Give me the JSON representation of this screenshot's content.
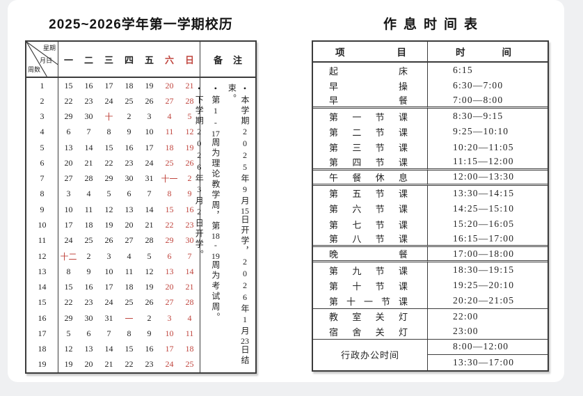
{
  "colors": {
    "red": "#c0453e",
    "ink": "#232323",
    "border": "#3b3b3b",
    "page_bg": "#eff0f2",
    "card_bg": "#ffffff"
  },
  "calendar": {
    "title": "2025~2026学年第一学期校历",
    "corner": {
      "top_right": "星期",
      "middle": "月日",
      "bottom_left": "周数"
    },
    "weekdays": [
      {
        "label": "一",
        "red": false
      },
      {
        "label": "二",
        "red": false
      },
      {
        "label": "三",
        "red": false
      },
      {
        "label": "四",
        "red": false
      },
      {
        "label": "五",
        "red": false
      },
      {
        "label": "六",
        "red": true
      },
      {
        "label": "日",
        "red": true
      }
    ],
    "remarks_header": "备注",
    "remarks": [
      "•本学期2025年9月15日开学，2026年1月23日结束。",
      "•第1-17周为理论教学周，第18-19周为考试周。",
      "•下学期2026年3月2日开学。"
    ],
    "weeks": [
      {
        "week": "1",
        "days": [
          "15",
          "16",
          "17",
          "18",
          "19",
          "20",
          "21"
        ],
        "red": [
          5,
          6
        ]
      },
      {
        "week": "2",
        "days": [
          "22",
          "23",
          "24",
          "25",
          "26",
          "27",
          "28"
        ],
        "red": [
          5,
          6
        ]
      },
      {
        "week": "3",
        "days": [
          "29",
          "30",
          "十",
          "2",
          "3",
          "4",
          "5"
        ],
        "red": [
          2,
          5,
          6
        ]
      },
      {
        "week": "4",
        "days": [
          "6",
          "7",
          "8",
          "9",
          "10",
          "11",
          "12"
        ],
        "red": [
          5,
          6
        ]
      },
      {
        "week": "5",
        "days": [
          "13",
          "14",
          "15",
          "16",
          "17",
          "18",
          "19"
        ],
        "red": [
          5,
          6
        ]
      },
      {
        "week": "6",
        "days": [
          "20",
          "21",
          "22",
          "23",
          "24",
          "25",
          "26"
        ],
        "red": [
          5,
          6
        ]
      },
      {
        "week": "7",
        "days": [
          "27",
          "28",
          "29",
          "30",
          "31",
          "十一",
          "2"
        ],
        "red": [
          5,
          6
        ]
      },
      {
        "week": "8",
        "days": [
          "3",
          "4",
          "5",
          "6",
          "7",
          "8",
          "9"
        ],
        "red": [
          5,
          6
        ]
      },
      {
        "week": "9",
        "days": [
          "10",
          "11",
          "12",
          "13",
          "14",
          "15",
          "16"
        ],
        "red": [
          5,
          6
        ]
      },
      {
        "week": "10",
        "days": [
          "17",
          "18",
          "19",
          "20",
          "21",
          "22",
          "23"
        ],
        "red": [
          5,
          6
        ]
      },
      {
        "week": "11",
        "days": [
          "24",
          "25",
          "26",
          "27",
          "28",
          "29",
          "30"
        ],
        "red": [
          5,
          6
        ]
      },
      {
        "week": "12",
        "days": [
          "十二",
          "2",
          "3",
          "4",
          "5",
          "6",
          "7"
        ],
        "red": [
          0,
          5,
          6
        ]
      },
      {
        "week": "13",
        "days": [
          "8",
          "9",
          "10",
          "11",
          "12",
          "13",
          "14"
        ],
        "red": [
          5,
          6
        ]
      },
      {
        "week": "14",
        "days": [
          "15",
          "16",
          "17",
          "18",
          "19",
          "20",
          "21"
        ],
        "red": [
          5,
          6
        ]
      },
      {
        "week": "15",
        "days": [
          "22",
          "23",
          "24",
          "25",
          "26",
          "27",
          "28"
        ],
        "red": [
          5,
          6
        ]
      },
      {
        "week": "16",
        "days": [
          "29",
          "30",
          "31",
          "一",
          "2",
          "3",
          "4"
        ],
        "red": [
          3,
          5,
          6
        ]
      },
      {
        "week": "17",
        "days": [
          "5",
          "6",
          "7",
          "8",
          "9",
          "10",
          "11"
        ],
        "red": [
          5,
          6
        ]
      },
      {
        "week": "18",
        "days": [
          "12",
          "13",
          "14",
          "15",
          "16",
          "17",
          "18"
        ],
        "red": [
          5,
          6
        ]
      },
      {
        "week": "19",
        "days": [
          "19",
          "20",
          "21",
          "22",
          "23",
          "24",
          "25"
        ],
        "red": [
          5,
          6
        ]
      }
    ]
  },
  "schedule": {
    "title": "作息时间表",
    "header": {
      "item": "项目",
      "time": "时间"
    },
    "rows": [
      {
        "item": "起床",
        "time": "6:15",
        "sep": "none"
      },
      {
        "item": "早操",
        "time": "6:30—7:00",
        "sep": "none"
      },
      {
        "item": "早餐",
        "time": "7:00—8:00",
        "sep": "double"
      },
      {
        "item": "第一节课",
        "time": "8:30—9:15",
        "sep": "none"
      },
      {
        "item": "第二节课",
        "time": "9:25—10:10",
        "sep": "none"
      },
      {
        "item": "第三节课",
        "time": "10:20—11:05",
        "sep": "none"
      },
      {
        "item": "第四节课",
        "time": "11:15—12:00",
        "sep": "double"
      },
      {
        "item": "午餐休息",
        "time": "12:00—13:30",
        "sep": "double"
      },
      {
        "item": "第五节课",
        "time": "13:30—14:15",
        "sep": "none"
      },
      {
        "item": "第六节课",
        "time": "14:25—15:10",
        "sep": "none"
      },
      {
        "item": "第七节课",
        "time": "15:20—16:05",
        "sep": "none"
      },
      {
        "item": "第八节课",
        "time": "16:15—17:00",
        "sep": "double"
      },
      {
        "item": "晚餐",
        "time": "17:00—18:00",
        "sep": "double"
      },
      {
        "item": "第九节课",
        "time": "18:30—19:15",
        "sep": "none"
      },
      {
        "item": "第十节课",
        "time": "19:25—20:10",
        "sep": "none"
      },
      {
        "item": "第十一节课",
        "time": "20:20—21:05",
        "sep": "single"
      },
      {
        "item": "教室关灯",
        "time": "22:00",
        "sep": "none"
      },
      {
        "item": "宿舍关灯",
        "time": "23:00",
        "sep": "single"
      }
    ],
    "admin_row": {
      "item": "行政办公时间",
      "times": [
        "8:00—12:00",
        "13:30—17:00"
      ]
    }
  }
}
